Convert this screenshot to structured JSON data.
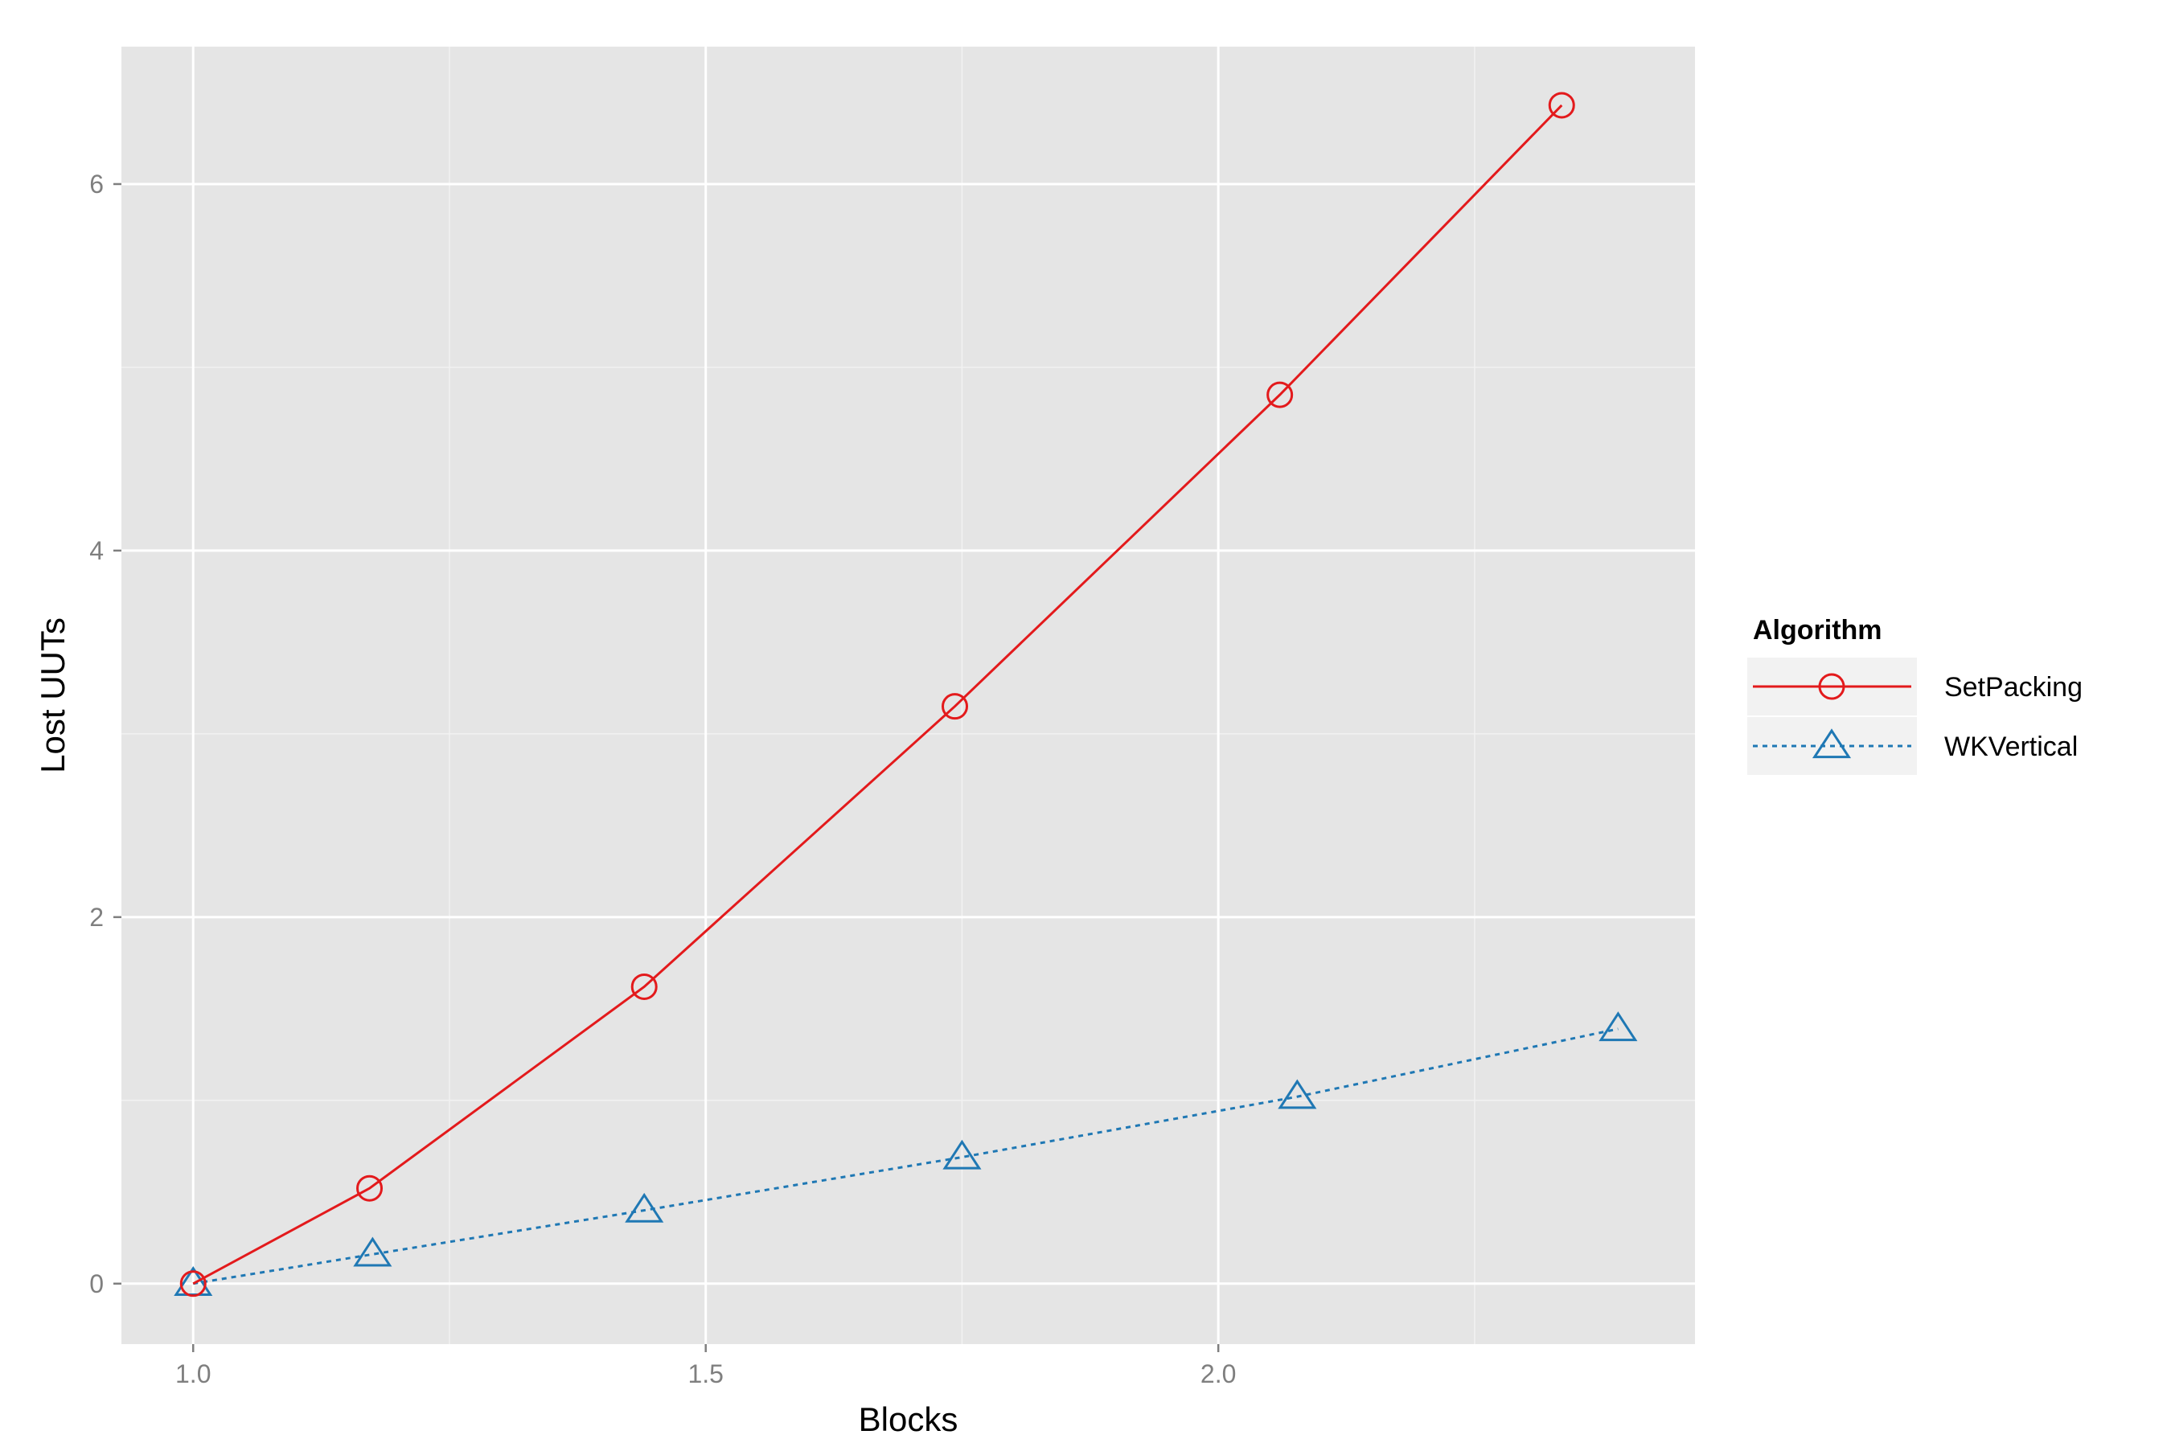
{
  "chart_data": {
    "type": "line",
    "xlabel": "Blocks",
    "ylabel": "Lost UUTs",
    "xlim": [
      0.93,
      2.465
    ],
    "ylim": [
      -0.33,
      6.75
    ],
    "x_ticks": [
      1.0,
      1.5,
      2.0
    ],
    "x_tick_labels": [
      "1.0",
      "1.5",
      "2.0"
    ],
    "x_minor_ticks": [
      1.25,
      1.75,
      2.25
    ],
    "y_ticks": [
      0,
      2,
      4,
      6
    ],
    "y_tick_labels": [
      "0",
      "2",
      "4",
      "6"
    ],
    "y_minor_ticks": [
      1,
      3,
      5
    ],
    "grid": true,
    "legend": {
      "title": "Algorithm",
      "placement": "right"
    },
    "series": [
      {
        "name": "SetPacking",
        "color": "#e31a1c",
        "marker": "circle",
        "line_style": "solid",
        "x": [
          1.0,
          1.172,
          1.44,
          1.743,
          2.06,
          2.335
        ],
        "y": [
          0.0,
          0.52,
          1.62,
          3.15,
          4.85,
          6.43
        ]
      },
      {
        "name": "WKVertical",
        "color": "#1f78b4",
        "marker": "triangle",
        "line_style": "dotted",
        "x": [
          1.0,
          1.175,
          1.44,
          1.75,
          2.077,
          2.39
        ],
        "y": [
          0.0,
          0.16,
          0.4,
          0.69,
          1.02,
          1.39
        ]
      }
    ]
  }
}
